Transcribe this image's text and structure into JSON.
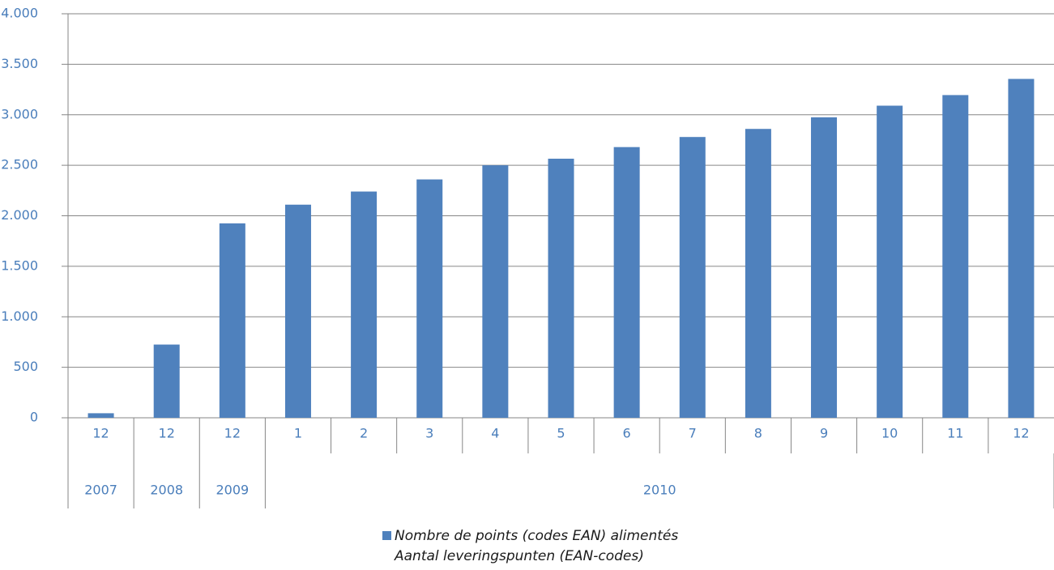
{
  "chart_data": {
    "type": "bar",
    "categories": [
      "12",
      "12",
      "12",
      "1",
      "2",
      "3",
      "4",
      "5",
      "6",
      "7",
      "8",
      "9",
      "10",
      "11",
      "12"
    ],
    "category_groups": [
      {
        "label": "2007",
        "count": 1
      },
      {
        "label": "2008",
        "count": 1
      },
      {
        "label": "2009",
        "count": 1
      },
      {
        "label": "2010",
        "count": 12
      }
    ],
    "series": [
      {
        "name": "Nombre de points (codes EAN) alimentés\nAantal leveringspunten (EAN-codes)",
        "color": "#4f81bd",
        "values": [
          45,
          725,
          1925,
          2110,
          2240,
          2360,
          2500,
          2565,
          2680,
          2780,
          2860,
          2975,
          3090,
          3195,
          3355
        ]
      }
    ],
    "ylim": [
      0,
      4000
    ],
    "yticks": [
      0,
      500,
      {
        "value": 1000,
        "label": "1.000"
      },
      {
        "value": 1500,
        "label": "1.500"
      },
      {
        "value": 2000,
        "label": "2.000"
      },
      {
        "value": 2500,
        "label": "2.500"
      },
      {
        "value": 3000,
        "label": "3.000"
      },
      {
        "value": 3500,
        "label": "3.500"
      },
      {
        "value": 4000,
        "label": "4.000"
      }
    ],
    "grid": true
  }
}
